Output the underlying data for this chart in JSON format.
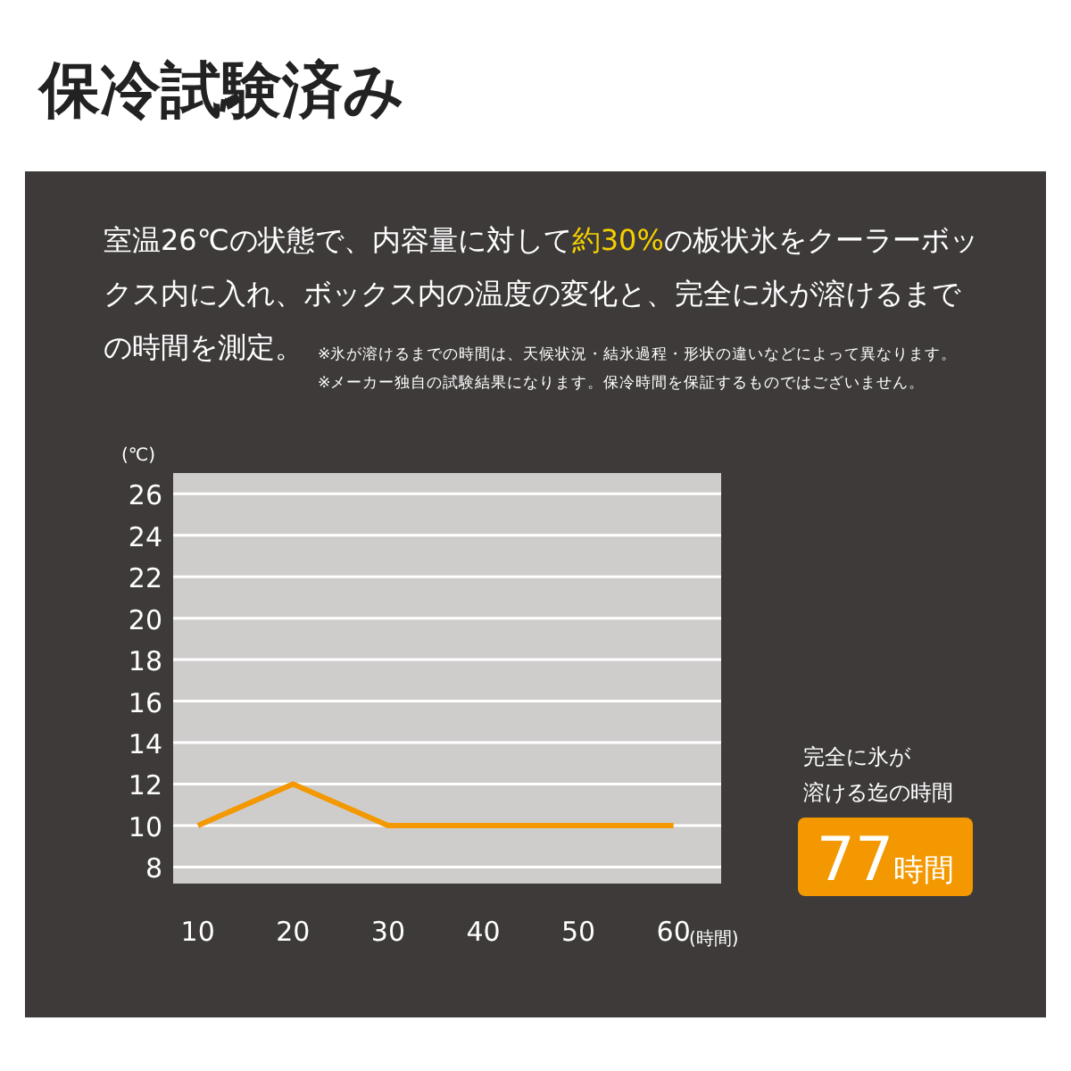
{
  "chart_data": {
    "type": "line",
    "title": "保冷試験済み",
    "subtitle": "室温26℃の状態で、内容量に対して**約30%**の板状氷をクーラーボックス内に入れ、ボックス内の温度の変化と、完全に氷が溶けるまでの時間を測定。",
    "annotations": [
      "※氷が溶けるまでの時間は、天候状況・結氷過程・形状の違いなどによって異なります。",
      "※メーカー独自の試験結果になります。保冷時間を保証するものではございません。",
      "完全に氷が溶ける迄の時間",
      "77時間"
    ],
    "ylabel": "(℃)",
    "xlabel": "(時間)",
    "x": [
      10,
      20,
      30,
      40,
      50,
      60
    ],
    "series": [
      {
        "color": "#f39800",
        "values": [
          10,
          12,
          10,
          10,
          10,
          10
        ]
      }
    ],
    "xlim": [
      7.4,
      65
    ],
    "ylim": [
      7.2,
      27
    ],
    "xticks": [
      10,
      20,
      30,
      40,
      50,
      60
    ],
    "yticks": [
      8,
      10,
      12,
      14,
      16,
      18,
      20,
      22,
      24,
      26
    ],
    "grid": "y",
    "marker": "none",
    "line_style": "solid"
  }
}
